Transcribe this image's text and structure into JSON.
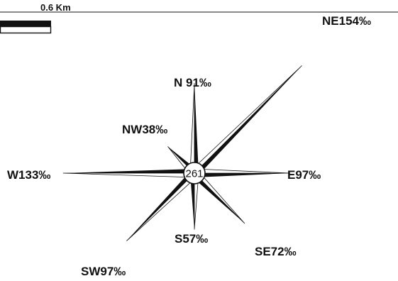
{
  "scale_bar": {
    "label": "0.6 Km"
  },
  "rose": {
    "center_value": "261",
    "directions": [
      {
        "dir": "N",
        "label": "N 91‰",
        "value": 91
      },
      {
        "dir": "NE",
        "label": "NE154‰",
        "value": 154
      },
      {
        "dir": "E",
        "label": "E97‰",
        "value": 97
      },
      {
        "dir": "SE",
        "label": "SE72‰",
        "value": 72
      },
      {
        "dir": "S",
        "label": "S57‰",
        "value": 57
      },
      {
        "dir": "SW",
        "label": "SW97‰",
        "value": 97
      },
      {
        "dir": "W",
        "label": "W133‰",
        "value": 133
      },
      {
        "dir": "NW",
        "label": "NW38‰",
        "value": 38
      }
    ]
  },
  "colors": {
    "ink": "#111111",
    "background": "#ffffff"
  }
}
